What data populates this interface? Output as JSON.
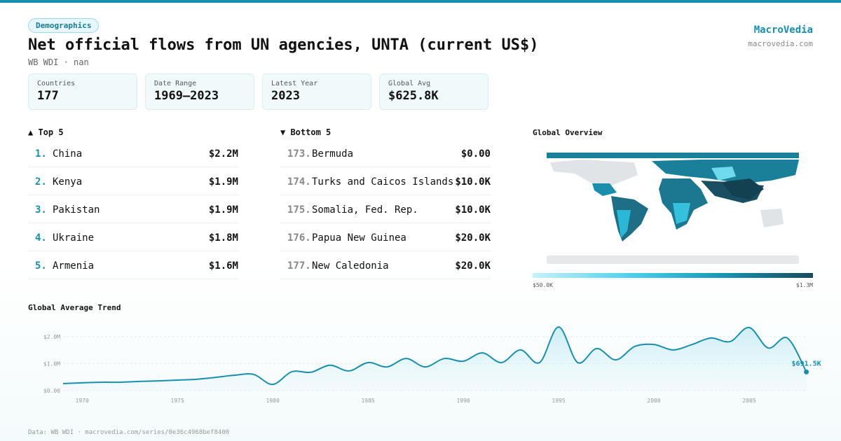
{
  "header": {
    "tag": "Demographics",
    "title": "Net official flows from UN agencies, UNTA (current US$)",
    "subtitle": "WB WDI · nan",
    "brand": "MacroVedia",
    "site": "macrovedia.com"
  },
  "stats": [
    {
      "label": "Countries",
      "value": "177"
    },
    {
      "label": "Date Range",
      "value": "1969–2023"
    },
    {
      "label": "Latest Year",
      "value": "2023"
    },
    {
      "label": "Global Avg",
      "value": "$625.8K"
    }
  ],
  "top": {
    "title": "▲ Top 5",
    "rows": [
      {
        "rank": "1.",
        "name": "China",
        "value": "$2.2M"
      },
      {
        "rank": "2.",
        "name": "Kenya",
        "value": "$1.9M"
      },
      {
        "rank": "3.",
        "name": "Pakistan",
        "value": "$1.9M"
      },
      {
        "rank": "4.",
        "name": "Ukraine",
        "value": "$1.8M"
      },
      {
        "rank": "5.",
        "name": "Armenia",
        "value": "$1.6M"
      }
    ]
  },
  "bottom": {
    "title": "▼ Bottom 5",
    "rows": [
      {
        "rank": "173.",
        "name": "Bermuda",
        "value": "$0.00"
      },
      {
        "rank": "174.",
        "name": "Turks and Caicos Islands",
        "value": "$10.0K"
      },
      {
        "rank": "175.",
        "name": "Somalia, Fed. Rep.",
        "value": "$10.0K"
      },
      {
        "rank": "176.",
        "name": "Papua New Guinea",
        "value": "$20.0K"
      },
      {
        "rank": "177.",
        "name": "New Caledonia",
        "value": "$20.0K"
      }
    ]
  },
  "map": {
    "title": "Global Overview",
    "legend_min": "$50.0K",
    "legend_max": "$1.3M"
  },
  "chart_data": {
    "type": "line",
    "title": "Global Average Trend",
    "color": "#1a8fad",
    "x": [
      1969,
      1970,
      1971,
      1972,
      1973,
      1974,
      1975,
      1976,
      1977,
      1978,
      1979,
      1980,
      1981,
      1982,
      1983,
      1984,
      1985,
      1986,
      1987,
      1988,
      1989,
      1990,
      1991,
      1992,
      1993,
      1994,
      1995,
      1996,
      1997,
      1998,
      1999,
      2000,
      2001,
      2002,
      2003,
      2004,
      2005,
      2006,
      2007,
      2008
    ],
    "values": [
      260000,
      290000,
      310000,
      310000,
      340000,
      360000,
      390000,
      420000,
      490000,
      570000,
      600000,
      230000,
      700000,
      680000,
      940000,
      730000,
      1040000,
      880000,
      1190000,
      880000,
      1190000,
      1090000,
      1400000,
      1040000,
      1510000,
      1040000,
      2360000,
      1040000,
      1560000,
      1140000,
      1640000,
      1710000,
      1510000,
      1710000,
      1950000,
      1820000,
      2340000,
      1580000,
      1950000,
      691500
    ],
    "value_labels": [
      null,
      null,
      null,
      null,
      null,
      null,
      null,
      null,
      null,
      null,
      null,
      null,
      null,
      null,
      null,
      null,
      null,
      null,
      null,
      null,
      null,
      null,
      null,
      null,
      null,
      null,
      null,
      null,
      null,
      null,
      null,
      null,
      null,
      null,
      null,
      null,
      null,
      null,
      null,
      "$691.5K"
    ],
    "xlim": [
      1969,
      2008
    ],
    "xticks": [
      1970,
      1975,
      1980,
      1985,
      1990,
      1995,
      2000,
      2005
    ],
    "ylim": [
      0,
      2400000
    ],
    "yticks": [
      {
        "value": 0,
        "label": "$0.00"
      },
      {
        "value": 1000000,
        "label": "$1.0M"
      },
      {
        "value": 2000000,
        "label": "$2.0M"
      }
    ],
    "grid": true
  },
  "footer": "Data: WB WDI · macrovedia.com/series/0e36c4968bef8400"
}
